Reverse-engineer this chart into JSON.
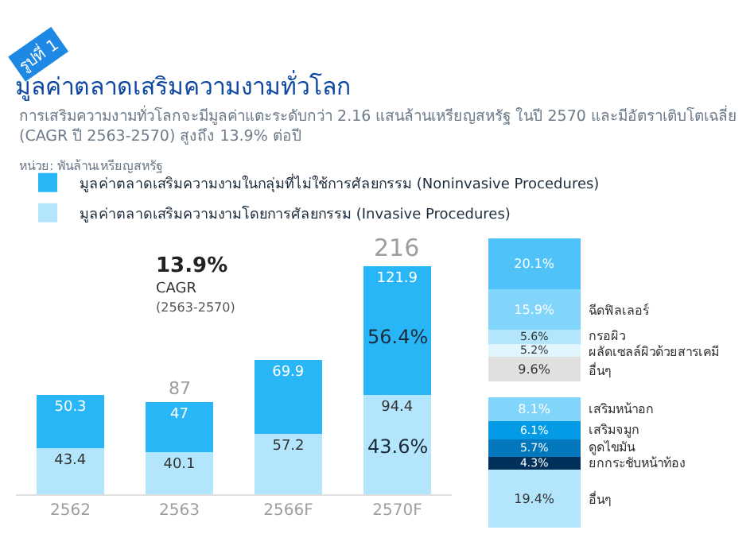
{
  "chart_data": [
    {
      "type": "bar",
      "title": "มูลค่าตลาดเสริมความงามทั่วโลก",
      "subtitle": "การเสริมความงามทั่วโลกจะมีมูลค่าแตะระดับกว่า 2.16 แสนล้านเหรียญสหรัฐ ในปี 2570 และมีอัตราเติบโตเฉลี่ย (CAGR ปี 2563-2570) สูงถึง 13.9% ต่อปี",
      "categories": [
        "2562",
        "2563",
        "2566F",
        "2570F"
      ],
      "stacked": true,
      "data_labels": true,
      "legend": "top",
      "series": [
        {
          "name": "มูลค่าตลาดเสริมความงามโดยการศัลยกรรม (Invasive Procedures)",
          "color": "#b3e5fc",
          "values": [
            43.4,
            40.1,
            57.2,
            94.4
          ]
        },
        {
          "name": "มูลค่าตลาดเสริมความงามในกลุ่มที่ไม่ใช้การศัลยกรรม (Noninvasive Procedures)",
          "color": "#29b6f6",
          "values": [
            50.3,
            47.0,
            69.9,
            121.9
          ]
        }
      ],
      "totals": [
        null,
        "87",
        null,
        "216"
      ],
      "annotations": [
        "รูปที่ 1",
        "หน่วย: พันล้านเหรียญสหรัฐ",
        "13.9%",
        "CAGR",
        "(2563-2570)",
        "56.4%",
        "43.6%"
      ]
    },
    {
      "type": "bar",
      "categories": [
        null
      ],
      "stacked": true,
      "series": [
        {
          "name": "อื่นๆ",
          "color": "#e0e0e0",
          "values": [
            9.6
          ],
          "value_labels": [
            "9.6%"
          ]
        },
        {
          "name": "ผลัดเซลล์ผิวด้วยสารเคมี",
          "color": "#e1f5fe",
          "values": [
            5.2
          ],
          "value_labels": [
            "5.2%"
          ]
        },
        {
          "name": "กรอผิว",
          "color": "#b3e5fc",
          "values": [
            5.6
          ],
          "value_labels": [
            "5.6%"
          ]
        },
        {
          "name": "ฉีดฟิลเลอร์",
          "color": "#81d4fa",
          "values": [
            15.9
          ],
          "value_labels": [
            "15.9%"
          ]
        },
        {
          "color": "#4fc3f7",
          "values": [
            20.1
          ],
          "value_labels": [
            "20.1%"
          ]
        }
      ]
    },
    {
      "type": "bar",
      "categories": [
        null
      ],
      "stacked": true,
      "series": [
        {
          "name": "อื่นๆ",
          "color": "#b3e5fc",
          "values": [
            19.4
          ],
          "value_labels": [
            "19.4%"
          ]
        },
        {
          "name": "ยกกระชับหน้าท้อง",
          "color": "#01305a",
          "values": [
            4.3
          ],
          "value_labels": [
            "4.3%"
          ]
        },
        {
          "name": "ดูดไขมัน",
          "color": "#0277bd",
          "values": [
            5.7
          ],
          "value_labels": [
            "5.7%"
          ]
        },
        {
          "name": "เสริมจมูก",
          "color": "#039be5",
          "values": [
            6.1
          ],
          "value_labels": [
            "6.1%"
          ]
        },
        {
          "name": "เสริมหน้าอก",
          "color": "#81d4fa",
          "values": [
            8.1
          ],
          "value_labels": [
            "8.1%"
          ]
        }
      ]
    }
  ]
}
